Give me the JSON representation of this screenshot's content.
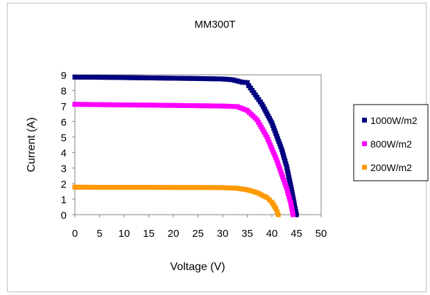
{
  "chart_data": {
    "type": "scatter",
    "title": "MM300T",
    "xlabel": "Voltage (V)",
    "ylabel": "Current (A)",
    "xlim": [
      0,
      50
    ],
    "ylim": [
      0,
      9
    ],
    "x_ticks": [
      "0",
      "5",
      "10",
      "15",
      "20",
      "25",
      "30",
      "35",
      "40",
      "45",
      "50"
    ],
    "y_ticks": [
      "0",
      "1",
      "2",
      "3",
      "4",
      "5",
      "6",
      "7",
      "8",
      "9"
    ],
    "grid": false,
    "legend": "right",
    "series": [
      {
        "name": "1000W/m2",
        "color": "#000080",
        "points": [
          [
            0,
            8.85
          ],
          [
            5,
            8.84
          ],
          [
            10,
            8.82
          ],
          [
            15,
            8.8
          ],
          [
            20,
            8.78
          ],
          [
            25,
            8.76
          ],
          [
            30,
            8.73
          ],
          [
            32,
            8.68
          ],
          [
            33,
            8.6
          ],
          [
            34,
            8.52
          ],
          [
            35,
            8.5
          ],
          [
            35.3,
            8.3
          ],
          [
            36,
            8.0
          ],
          [
            38,
            7.1
          ],
          [
            40,
            5.9
          ],
          [
            42,
            4.2
          ],
          [
            43,
            3.1
          ],
          [
            44,
            1.6
          ],
          [
            44.6,
            0.6
          ],
          [
            45,
            0
          ]
        ]
      },
      {
        "name": "800W/m2",
        "color": "#ff00ff",
        "points": [
          [
            0,
            7.1
          ],
          [
            5,
            7.08
          ],
          [
            10,
            7.06
          ],
          [
            15,
            7.05
          ],
          [
            20,
            7.03
          ],
          [
            25,
            7.01
          ],
          [
            30,
            6.99
          ],
          [
            33,
            6.95
          ],
          [
            35,
            6.7
          ],
          [
            37,
            6.1
          ],
          [
            39,
            5.0
          ],
          [
            41,
            3.5
          ],
          [
            42,
            2.6
          ],
          [
            43,
            1.7
          ],
          [
            43.8,
            0.8
          ],
          [
            44.3,
            0
          ]
        ]
      },
      {
        "name": "200W/m2",
        "color": "#ff9900",
        "points": [
          [
            0,
            1.77
          ],
          [
            5,
            1.76
          ],
          [
            10,
            1.76
          ],
          [
            15,
            1.76
          ],
          [
            20,
            1.75
          ],
          [
            25,
            1.75
          ],
          [
            30,
            1.74
          ],
          [
            33,
            1.7
          ],
          [
            35,
            1.6
          ],
          [
            37,
            1.42
          ],
          [
            39,
            1.1
          ],
          [
            40,
            0.8
          ],
          [
            40.8,
            0.4
          ],
          [
            41.3,
            0
          ]
        ]
      }
    ]
  }
}
